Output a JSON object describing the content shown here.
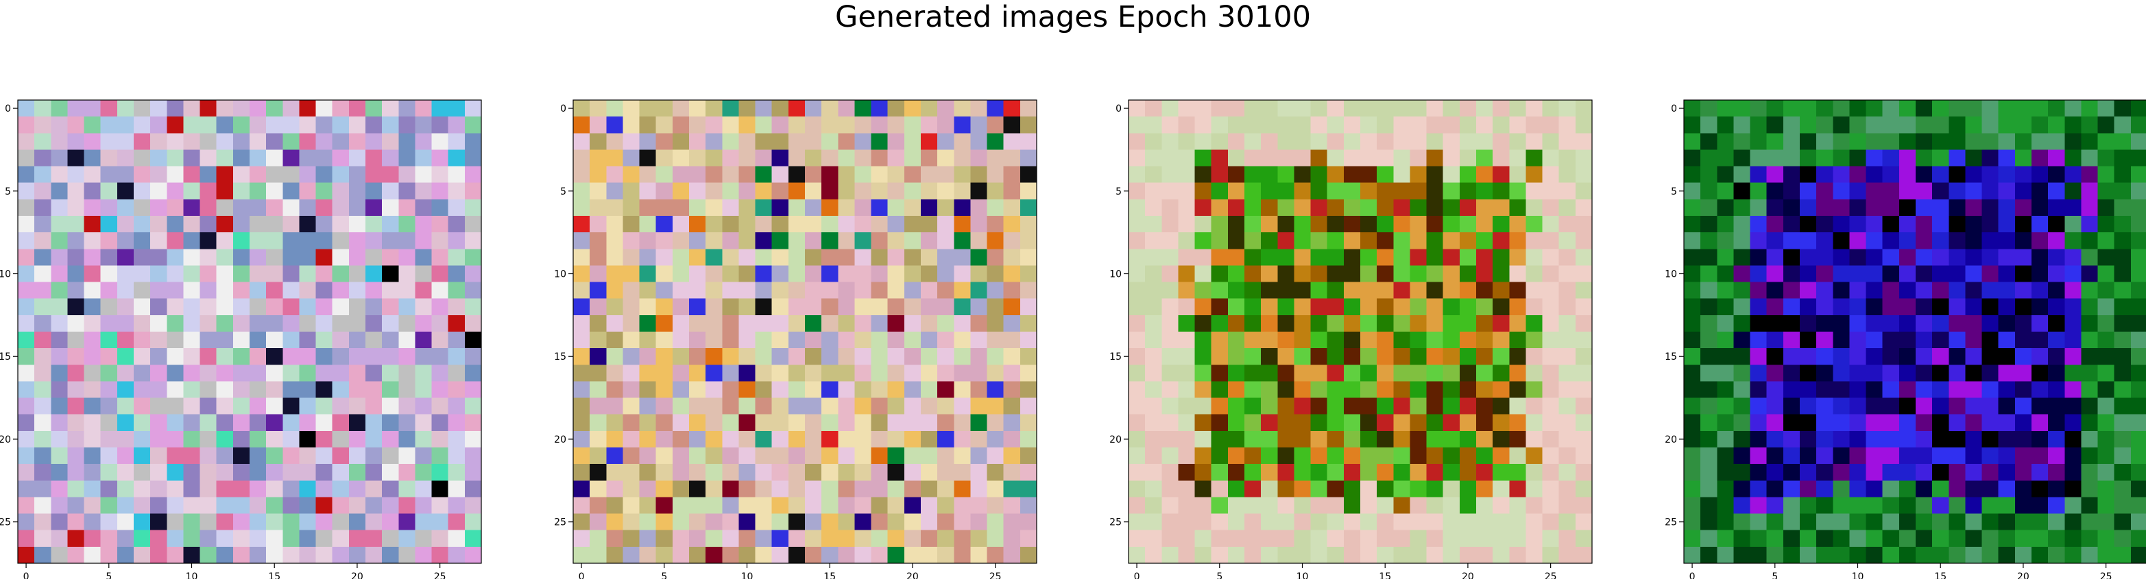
{
  "figure": {
    "suptitle": "Generated images Epoch 30100"
  },
  "chart_data": [
    {
      "type": "heatmap",
      "title": "",
      "xlabel": "",
      "ylabel": "",
      "grid_size": [
        28,
        28
      ],
      "xlim": [
        -0.5,
        27.5
      ],
      "ylim": [
        27.5,
        -0.5
      ],
      "xticks": [
        0,
        5,
        10,
        15,
        20,
        25
      ],
      "yticks": [
        0,
        5,
        10,
        15,
        20,
        25
      ],
      "grid": false,
      "palette": [
        "#d8b8d8",
        "#c8a8e0",
        "#e0c0d0",
        "#a8c8e8",
        "#e8a8c8",
        "#b8e0c8",
        "#d0d0f0",
        "#e8d0e0",
        "#c0c0c0",
        "#a0a0d0",
        "#9080c0",
        "#80d0a0",
        "#e070a0",
        "#f0f0f0",
        "#e0a0e0",
        "#7090c0"
      ],
      "accent_palette": [
        "#101030",
        "#c01010",
        "#40e0b0",
        "#6020a0",
        "#30c0e0",
        "#000000"
      ],
      "accent_ratio": 0.06,
      "center_palette": [],
      "border_palette": [],
      "seed": 11
    },
    {
      "type": "heatmap",
      "title": "",
      "xlabel": "",
      "ylabel": "",
      "grid_size": [
        28,
        28
      ],
      "xlim": [
        -0.5,
        27.5
      ],
      "ylim": [
        27.5,
        -0.5
      ],
      "xticks": [
        0,
        5,
        10,
        15,
        20,
        25
      ],
      "yticks": [
        0,
        5,
        10,
        15,
        20,
        25
      ],
      "grid": false,
      "palette": [
        "#e0c0b0",
        "#d8a8c0",
        "#c8c080",
        "#f0e0b0",
        "#e8b8c8",
        "#b0a060",
        "#e0d0a0",
        "#d09080",
        "#c8e0b0",
        "#e8c8e0",
        "#a8a8d0",
        "#f0c060"
      ],
      "accent_palette": [
        "#200080",
        "#800020",
        "#e02020",
        "#20a080",
        "#3030e0",
        "#008030",
        "#101010",
        "#e07010"
      ],
      "accent_ratio": 0.12,
      "center_palette": [],
      "border_palette": [],
      "seed": 23
    },
    {
      "type": "heatmap",
      "title": "",
      "xlabel": "",
      "ylabel": "",
      "grid_size": [
        28,
        28
      ],
      "xlim": [
        -0.5,
        27.5
      ],
      "ylim": [
        27.5,
        -0.5
      ],
      "xticks": [
        0,
        5,
        10,
        15,
        20,
        25
      ],
      "yticks": [
        0,
        5,
        10,
        15,
        20,
        25
      ],
      "grid": false,
      "palette": [
        "#e8c0b8",
        "#d8d8b0",
        "#c8e0b0",
        "#e0b0c0",
        "#f0d8c8",
        "#c0d0a0"
      ],
      "accent_palette": [],
      "accent_ratio": 0,
      "center_palette": [
        "#40c020",
        "#20a010",
        "#c08010",
        "#a06000",
        "#80c040",
        "#e08020",
        "#602000",
        "#303000",
        "#208000",
        "#c02020",
        "#e0a040",
        "#60d040"
      ],
      "border_palette": [
        "#e8c0b8",
        "#d0e0b8",
        "#f0d0c8",
        "#c8d8a8"
      ],
      "seed": 37
    },
    {
      "type": "heatmap",
      "title": "",
      "xlabel": "",
      "ylabel": "",
      "grid_size": [
        28,
        28
      ],
      "xlim": [
        -0.5,
        27.5
      ],
      "ylim": [
        27.5,
        -0.5
      ],
      "xticks": [
        0,
        5,
        10,
        15,
        20,
        25
      ],
      "yticks": [
        0,
        5,
        10,
        15,
        20,
        25
      ],
      "grid": false,
      "palette": [
        "#108020",
        "#20a030",
        "#006010",
        "#30b040",
        "#108040"
      ],
      "accent_palette": [],
      "accent_ratio": 0,
      "center_palette": [
        "#2010c0",
        "#1000a0",
        "#4020e0",
        "#000040",
        "#a010e0",
        "#100060",
        "#3030f0",
        "#600080",
        "#000000",
        "#2020d0"
      ],
      "border_palette": [
        "#108020",
        "#20a030",
        "#006010",
        "#309040",
        "#50a070",
        "#004010"
      ],
      "seed": 53
    }
  ]
}
